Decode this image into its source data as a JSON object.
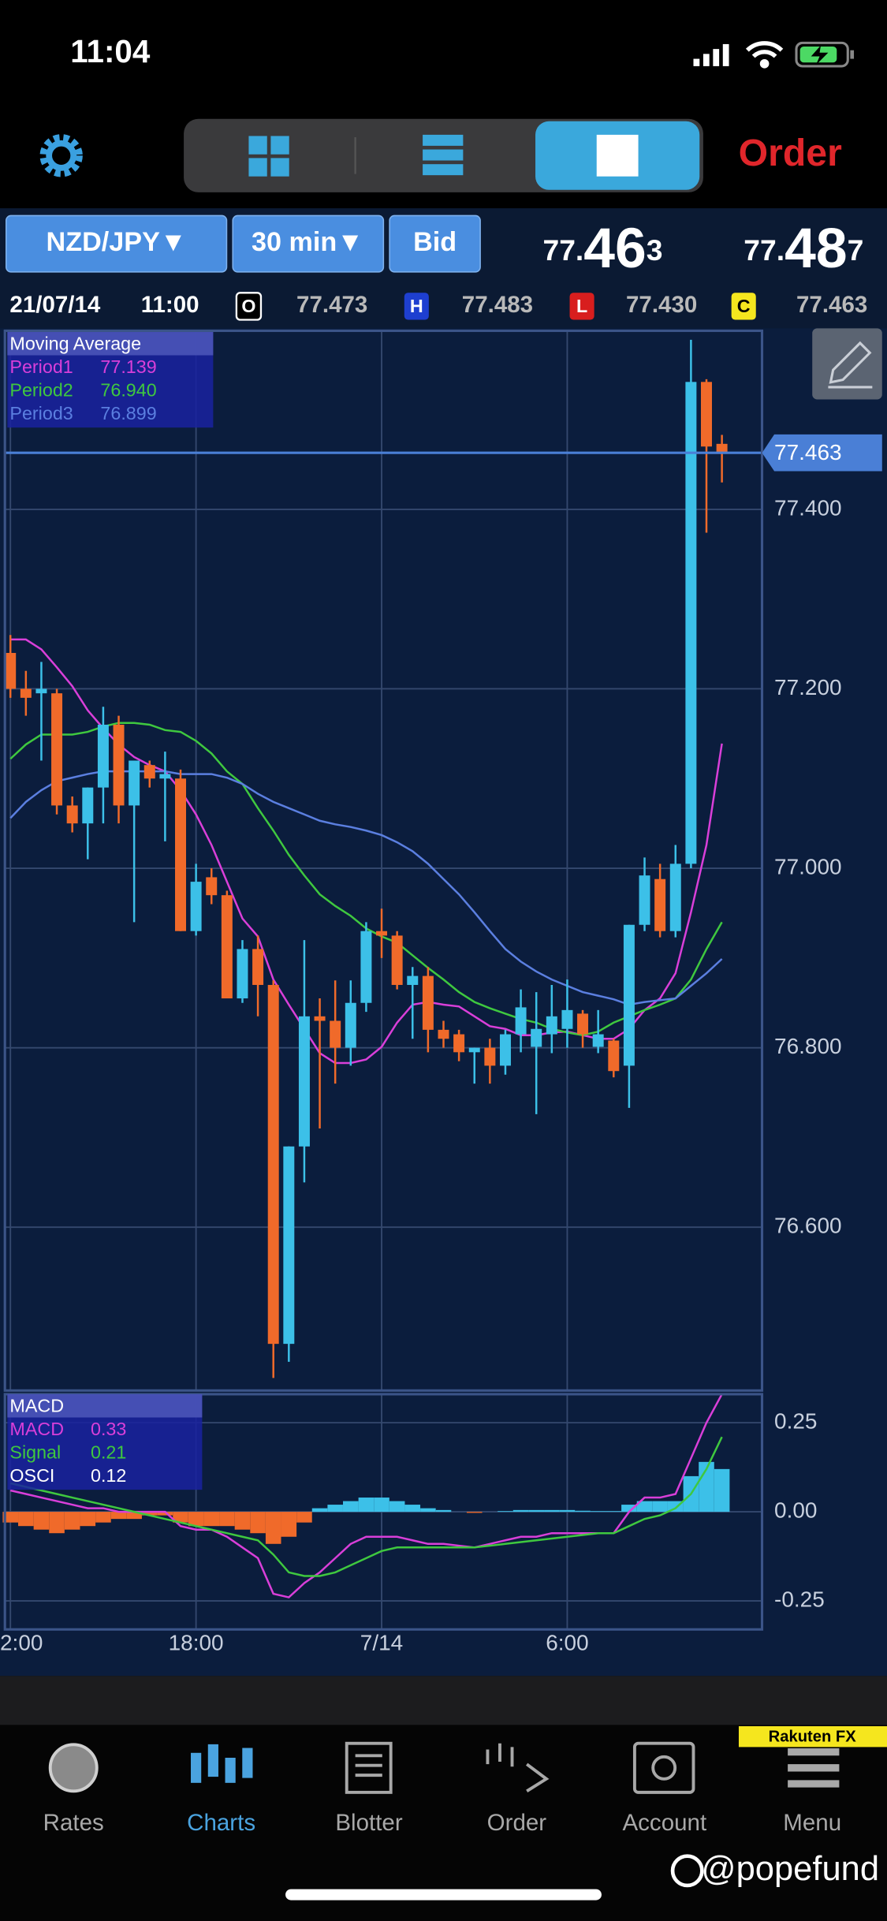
{
  "status_bar": {
    "time": "11:04"
  },
  "toolbar": {
    "order_button": "Order"
  },
  "instrument_bar": {
    "pair": "NZD/JPY▼",
    "timeframe": "30 min▼",
    "price_type": "Bid",
    "bid": {
      "prefix": "77.",
      "big": "46",
      "pip": "3"
    },
    "ask": {
      "prefix": "77.",
      "big": "48",
      "pip": "7"
    }
  },
  "ohlc_bar": {
    "date": "21/07/14",
    "time": "11:00",
    "open_label": "O",
    "open": "77.473",
    "high_label": "H",
    "high": "77.483",
    "low_label": "L",
    "low": "77.430",
    "close_label": "C",
    "close": "77.463"
  },
  "chart_data": [
    {
      "type": "candlestick",
      "legend_title": "Moving Average",
      "categories": [
        "2:00",
        null,
        null,
        null,
        null,
        null,
        null,
        null,
        null,
        null,
        null,
        null,
        "18:00",
        null,
        null,
        null,
        null,
        null,
        null,
        null,
        null,
        null,
        null,
        null,
        "7/14",
        null,
        null,
        null,
        null,
        null,
        null,
        null,
        null,
        null,
        null,
        null,
        "6:00",
        null,
        null,
        null,
        null,
        null,
        null,
        null,
        null,
        null,
        null
      ],
      "open": [
        77.24,
        77.2,
        77.195,
        77.195,
        77.07,
        77.05,
        77.09,
        77.16,
        77.07,
        77.115,
        77.1,
        77.1,
        76.93,
        76.99,
        76.97,
        76.855,
        76.91,
        76.87,
        76.47,
        76.69,
        76.835,
        76.83,
        76.8,
        76.85,
        76.93,
        76.925,
        76.87,
        76.88,
        76.82,
        76.815,
        76.795,
        76.8,
        76.78,
        76.815,
        76.801,
        76.815,
        76.821,
        76.838,
        76.801,
        76.808,
        76.78,
        76.937,
        76.988,
        76.93,
        77.005,
        77.542,
        77.473
      ],
      "high": [
        77.26,
        77.22,
        77.23,
        77.2,
        77.08,
        77.09,
        77.18,
        77.17,
        77.12,
        77.12,
        77.13,
        77.11,
        77.005,
        77.0,
        76.975,
        76.92,
        76.925,
        76.875,
        76.69,
        76.92,
        76.855,
        76.875,
        76.875,
        76.94,
        76.955,
        76.93,
        76.89,
        76.89,
        76.83,
        76.82,
        76.8,
        76.81,
        76.82,
        76.865,
        76.862,
        76.87,
        76.876,
        76.842,
        76.842,
        76.81,
        76.937,
        77.012,
        77.005,
        77.026,
        77.589,
        77.545,
        77.483
      ],
      "low": [
        77.19,
        77.17,
        77.12,
        77.06,
        77.04,
        77.01,
        77.05,
        77.05,
        76.94,
        77.09,
        77.03,
        76.93,
        76.925,
        76.96,
        76.855,
        76.85,
        76.835,
        76.432,
        76.45,
        76.65,
        76.71,
        76.76,
        76.78,
        76.84,
        76.9,
        76.865,
        76.81,
        76.795,
        76.8,
        76.785,
        76.76,
        76.76,
        76.77,
        76.795,
        76.726,
        76.794,
        76.8,
        76.8,
        76.794,
        76.767,
        76.733,
        76.93,
        76.923,
        76.923,
        77.0,
        77.374,
        77.43
      ],
      "close": [
        77.2,
        77.19,
        77.2,
        77.07,
        77.05,
        77.09,
        77.16,
        77.07,
        77.12,
        77.1,
        77.105,
        76.93,
        76.985,
        76.97,
        76.855,
        76.91,
        76.87,
        76.47,
        76.69,
        76.835,
        76.83,
        76.8,
        76.85,
        76.93,
        76.925,
        76.87,
        76.88,
        76.82,
        76.81,
        76.795,
        76.8,
        76.78,
        76.815,
        76.845,
        76.821,
        76.835,
        76.842,
        76.815,
        76.815,
        76.774,
        76.937,
        76.992,
        76.93,
        77.005,
        77.542,
        77.47,
        77.463
      ],
      "up_color": "#3cc0e8",
      "down_color": "#f06a2a",
      "series": [
        {
          "name": "Period1",
          "color": "#d93fd9",
          "values": [
            77.255,
            77.255,
            77.244,
            77.224,
            77.203,
            77.176,
            77.156,
            77.138,
            77.124,
            77.115,
            77.108,
            77.087,
            77.06,
            77.026,
            76.985,
            76.944,
            76.924,
            76.876,
            76.848,
            76.821,
            76.794,
            76.783,
            76.783,
            76.787,
            76.801,
            76.828,
            76.848,
            76.851,
            76.848,
            76.846,
            76.835,
            76.824,
            76.821,
            76.814,
            76.814,
            76.817,
            76.818,
            76.814,
            76.81,
            76.81,
            76.821,
            76.842,
            76.855,
            76.883,
            76.951,
            77.026,
            77.139
          ]
        },
        {
          "name": "Period2",
          "color": "#3fc83f",
          "values": [
            77.122,
            77.138,
            77.149,
            77.149,
            77.149,
            77.152,
            77.158,
            77.162,
            77.162,
            77.16,
            77.154,
            77.152,
            77.142,
            77.128,
            77.108,
            77.094,
            77.067,
            77.042,
            77.015,
            76.992,
            76.971,
            76.958,
            76.947,
            76.933,
            76.924,
            76.917,
            76.903,
            76.889,
            76.876,
            76.862,
            76.851,
            76.844,
            76.838,
            76.832,
            76.828,
            76.821,
            76.817,
            76.814,
            76.818,
            76.828,
            76.835,
            76.842,
            76.848,
            76.855,
            76.876,
            76.91,
            76.94
          ],
          "value_labels": [
            null,
            null,
            null,
            null,
            null,
            null,
            null,
            null,
            null,
            null,
            null,
            null,
            null,
            null,
            null,
            null,
            null,
            null,
            null,
            null,
            null,
            null,
            null,
            null,
            null,
            null,
            null,
            null,
            null,
            null,
            null,
            null,
            null,
            null,
            null,
            null,
            null,
            null,
            null,
            null,
            null,
            null,
            null,
            null,
            null,
            null,
            "76.940"
          ]
        },
        {
          "name": "Period3",
          "color": "#5b7fe0",
          "values": [
            77.056,
            77.074,
            77.087,
            77.097,
            77.101,
            77.105,
            77.108,
            77.108,
            77.108,
            77.108,
            77.108,
            77.105,
            77.105,
            77.105,
            77.101,
            77.094,
            77.083,
            77.074,
            77.067,
            77.06,
            77.053,
            77.049,
            77.046,
            77.042,
            77.037,
            77.029,
            77.019,
            77.005,
            76.988,
            76.971,
            76.951,
            76.93,
            76.91,
            76.896,
            76.885,
            76.876,
            76.869,
            76.862,
            76.858,
            76.854,
            76.848,
            76.851,
            76.853,
            76.855,
            76.869,
            76.883,
            76.899
          ]
        }
      ],
      "ylim": [
        76.418,
        77.599
      ],
      "yticks": [
        {
          "value": 76.6,
          "label": "76.600"
        },
        {
          "value": 76.8,
          "label": "76.800"
        },
        {
          "value": 77.0,
          "label": "77.000"
        },
        {
          "value": 77.2,
          "label": "77.200"
        },
        {
          "value": 77.4,
          "label": "77.400"
        }
      ],
      "grid": true
    },
    {
      "type": "macd",
      "legend_title": "MACD",
      "series": [
        {
          "name": "MACD",
          "style": "line",
          "color": "#d93fd9",
          "values": [
            0.06,
            0.05,
            0.04,
            0.03,
            0.02,
            0.01,
            0.01,
            0.0,
            0.0,
            0.0,
            0.0,
            -0.04,
            -0.05,
            -0.05,
            -0.07,
            -0.1,
            -0.13,
            -0.23,
            -0.24,
            -0.2,
            -0.17,
            -0.13,
            -0.09,
            -0.07,
            -0.07,
            -0.07,
            -0.08,
            -0.09,
            -0.09,
            -0.095,
            -0.1,
            -0.09,
            -0.08,
            -0.07,
            -0.07,
            -0.06,
            -0.06,
            -0.06,
            -0.06,
            -0.06,
            0.0,
            0.04,
            0.04,
            0.05,
            0.15,
            0.25,
            0.33
          ]
        },
        {
          "name": "Signal",
          "style": "line",
          "color": "#3fc83f",
          "values": [
            0.08,
            0.07,
            0.06,
            0.05,
            0.04,
            0.03,
            0.02,
            0.01,
            0.0,
            -0.01,
            -0.02,
            -0.03,
            -0.04,
            -0.05,
            -0.06,
            -0.07,
            -0.08,
            -0.12,
            -0.17,
            -0.18,
            -0.18,
            -0.17,
            -0.15,
            -0.13,
            -0.11,
            -0.1,
            -0.1,
            -0.1,
            -0.1,
            -0.1,
            -0.1,
            -0.095,
            -0.09,
            -0.085,
            -0.08,
            -0.075,
            -0.07,
            -0.065,
            -0.06,
            -0.06,
            -0.04,
            -0.02,
            -0.01,
            0.01,
            0.05,
            0.12,
            0.21
          ]
        },
        {
          "name": "OSCI",
          "style": "bar",
          "color": "#3cc0e8",
          "negative_color": "#f06a2a",
          "label_color": "#ffffff",
          "values": [
            -0.03,
            -0.04,
            -0.05,
            -0.06,
            -0.05,
            -0.04,
            -0.03,
            -0.02,
            -0.02,
            -0.01,
            -0.01,
            -0.03,
            -0.04,
            -0.04,
            -0.04,
            -0.05,
            -0.06,
            -0.09,
            -0.07,
            -0.03,
            0.01,
            0.02,
            0.03,
            0.04,
            0.04,
            0.03,
            0.02,
            0.01,
            0.005,
            0,
            -0.003,
            0,
            0.002,
            0.005,
            0.005,
            0.005,
            0.005,
            0.003,
            0.002,
            0.002,
            0.02,
            0.03,
            0.03,
            0.03,
            0.1,
            0.14,
            0.12
          ]
        }
      ],
      "ylim": [
        -0.33,
        0.33
      ],
      "yticks": [
        -0.25,
        {
          "value": 0,
          "label": "0.00"
        },
        0.25
      ],
      "grid": true
    }
  ],
  "tab_bar": {
    "tabs": [
      {
        "label": "Rates"
      },
      {
        "label": "Charts"
      },
      {
        "label": "Blotter"
      },
      {
        "label": "Order"
      },
      {
        "label": "Account"
      },
      {
        "label": "Menu"
      }
    ],
    "active": 1,
    "brand": "Rakuten FX"
  },
  "watermark": "@popefund"
}
